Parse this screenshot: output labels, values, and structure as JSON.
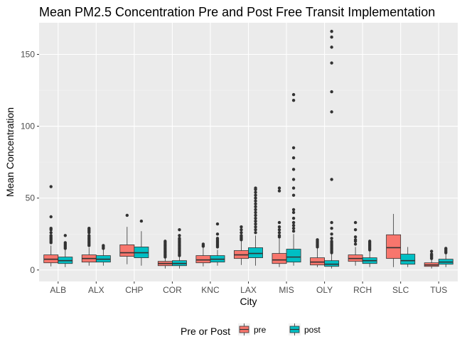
{
  "chart_data": {
    "type": "boxplot",
    "title": "Mean PM2.5 Concentration Pre and Post Free Transit Implementation",
    "xlabel": "City",
    "ylabel": "Mean Concentration",
    "ylim": [
      -8,
      172
    ],
    "y_ticks": [
      0,
      50,
      100,
      150
    ],
    "grid": true,
    "legend": {
      "title": "Pre or Post",
      "position": "bottom",
      "entries": [
        {
          "label": "pre",
          "color": "#F8766D"
        },
        {
          "label": "post",
          "color": "#00BFC4"
        }
      ]
    },
    "categories": [
      "ALB",
      "ALX",
      "CHP",
      "COR",
      "KNC",
      "LAX",
      "MIS",
      "OLY",
      "RCH",
      "SLC",
      "TUS"
    ],
    "series": [
      {
        "name": "pre",
        "color": "#F8766D",
        "boxes": [
          {
            "min": 2.5,
            "q1": 5,
            "median": 7.5,
            "q3": 10.5,
            "max": 17,
            "outliers": [
              19,
              20,
              21,
              22,
              23,
              24,
              26,
              28,
              29,
              37,
              58
            ]
          },
          {
            "min": 3,
            "q1": 5.5,
            "median": 8,
            "q3": 10.5,
            "max": 15.5,
            "outliers": [
              17,
              18,
              19,
              20,
              21,
              22,
              23,
              24,
              26,
              27,
              28,
              29
            ]
          },
          {
            "min": 4,
            "q1": 9.5,
            "median": 12,
            "q3": 17.5,
            "max": 30,
            "outliers": [
              38
            ]
          },
          {
            "min": 1,
            "q1": 3,
            "median": 4.5,
            "q3": 6,
            "max": 8.5,
            "outliers": [
              9,
              10,
              11,
              12,
              13,
              14,
              15,
              16,
              17,
              18,
              19,
              20
            ]
          },
          {
            "min": 2.5,
            "q1": 5,
            "median": 7,
            "q3": 10,
            "max": 16,
            "outliers": [
              16.5,
              17,
              18
            ]
          },
          {
            "min": 3.5,
            "q1": 8,
            "median": 10.5,
            "q3": 13.5,
            "max": 20,
            "outliers": [
              21,
              22,
              23,
              24,
              26,
              28,
              30
            ]
          },
          {
            "min": 2,
            "q1": 4.5,
            "median": 7,
            "q3": 11.5,
            "max": 22,
            "outliers": [
              23,
              24,
              26,
              28,
              30,
              33,
              55,
              57
            ]
          },
          {
            "min": 2,
            "q1": 3.5,
            "median": 5.5,
            "q3": 8.5,
            "max": 15,
            "outliers": [
              16,
              17,
              18,
              19,
              20,
              21
            ]
          },
          {
            "min": 3,
            "q1": 6,
            "median": 8,
            "q3": 10.5,
            "max": 16,
            "outliers": [
              18,
              20,
              21,
              23,
              28,
              33
            ]
          },
          {
            "min": 2,
            "q1": 8,
            "median": 15.5,
            "q3": 24.5,
            "max": 39,
            "outliers": []
          },
          {
            "min": 1,
            "q1": 2.5,
            "median": 3.5,
            "q3": 5,
            "max": 7,
            "outliers": [
              8,
              9,
              10,
              11,
              13
            ]
          }
        ]
      },
      {
        "name": "post",
        "color": "#00BFC4",
        "boxes": [
          {
            "min": 2,
            "q1": 4.5,
            "median": 6.5,
            "q3": 9,
            "max": 14,
            "outliers": [
              15,
              16,
              17,
              18,
              19,
              24
            ]
          },
          {
            "min": 3,
            "q1": 5.5,
            "median": 7.5,
            "q3": 10,
            "max": 14,
            "outliers": [
              15,
              16,
              17
            ]
          },
          {
            "min": 3,
            "q1": 8.5,
            "median": 12,
            "q3": 16,
            "max": 27,
            "outliers": [
              34
            ]
          },
          {
            "min": 1,
            "q1": 3,
            "median": 4.5,
            "q3": 6.5,
            "max": 9,
            "outliers": [
              10,
              11,
              12,
              13,
              14,
              15,
              16,
              17,
              18,
              19,
              20,
              21,
              22,
              24,
              28
            ]
          },
          {
            "min": 3,
            "q1": 5.5,
            "median": 7.5,
            "q3": 10,
            "max": 14,
            "outliers": [
              16,
              17,
              18,
              19,
              20,
              21,
              22,
              25,
              32
            ]
          },
          {
            "min": 3,
            "q1": 8.5,
            "median": 11.5,
            "q3": 15.5,
            "max": 24,
            "outliers": [
              26,
              28,
              30,
              32,
              34,
              36,
              38,
              40,
              42,
              44,
              46,
              48,
              50,
              52,
              54,
              56,
              57
            ]
          },
          {
            "min": 3,
            "q1": 5.5,
            "median": 9,
            "q3": 14.5,
            "max": 25,
            "outliers": [
              27,
              29,
              31,
              33,
              36,
              40,
              42,
              52,
              57,
              63,
              70,
              78,
              85,
              118,
              122
            ]
          },
          {
            "min": 1,
            "q1": 2.5,
            "median": 4,
            "q3": 6.5,
            "max": 11,
            "outliers": [
              12,
              13,
              14,
              15,
              16,
              17,
              18,
              19,
              20,
              22,
              25,
              29,
              33,
              63,
              110,
              124,
              144,
              155,
              162,
              166
            ]
          },
          {
            "min": 2,
            "q1": 4.5,
            "median": 6.5,
            "q3": 8.5,
            "max": 13,
            "outliers": [
              14,
              15,
              16,
              17,
              18,
              19,
              20
            ]
          },
          {
            "min": 2,
            "q1": 4,
            "median": 6.5,
            "q3": 11,
            "max": 16,
            "outliers": []
          },
          {
            "min": 2,
            "q1": 4,
            "median": 5.5,
            "q3": 7.5,
            "max": 11,
            "outliers": [
              12,
              13,
              14,
              15
            ]
          }
        ]
      }
    ]
  },
  "colors": {
    "panel_bg": "#EBEBEB",
    "grid_major": "#FFFFFF",
    "grid_minor": "#F5F5F5",
    "box_stroke": "#333333",
    "outlier": "#333333"
  }
}
